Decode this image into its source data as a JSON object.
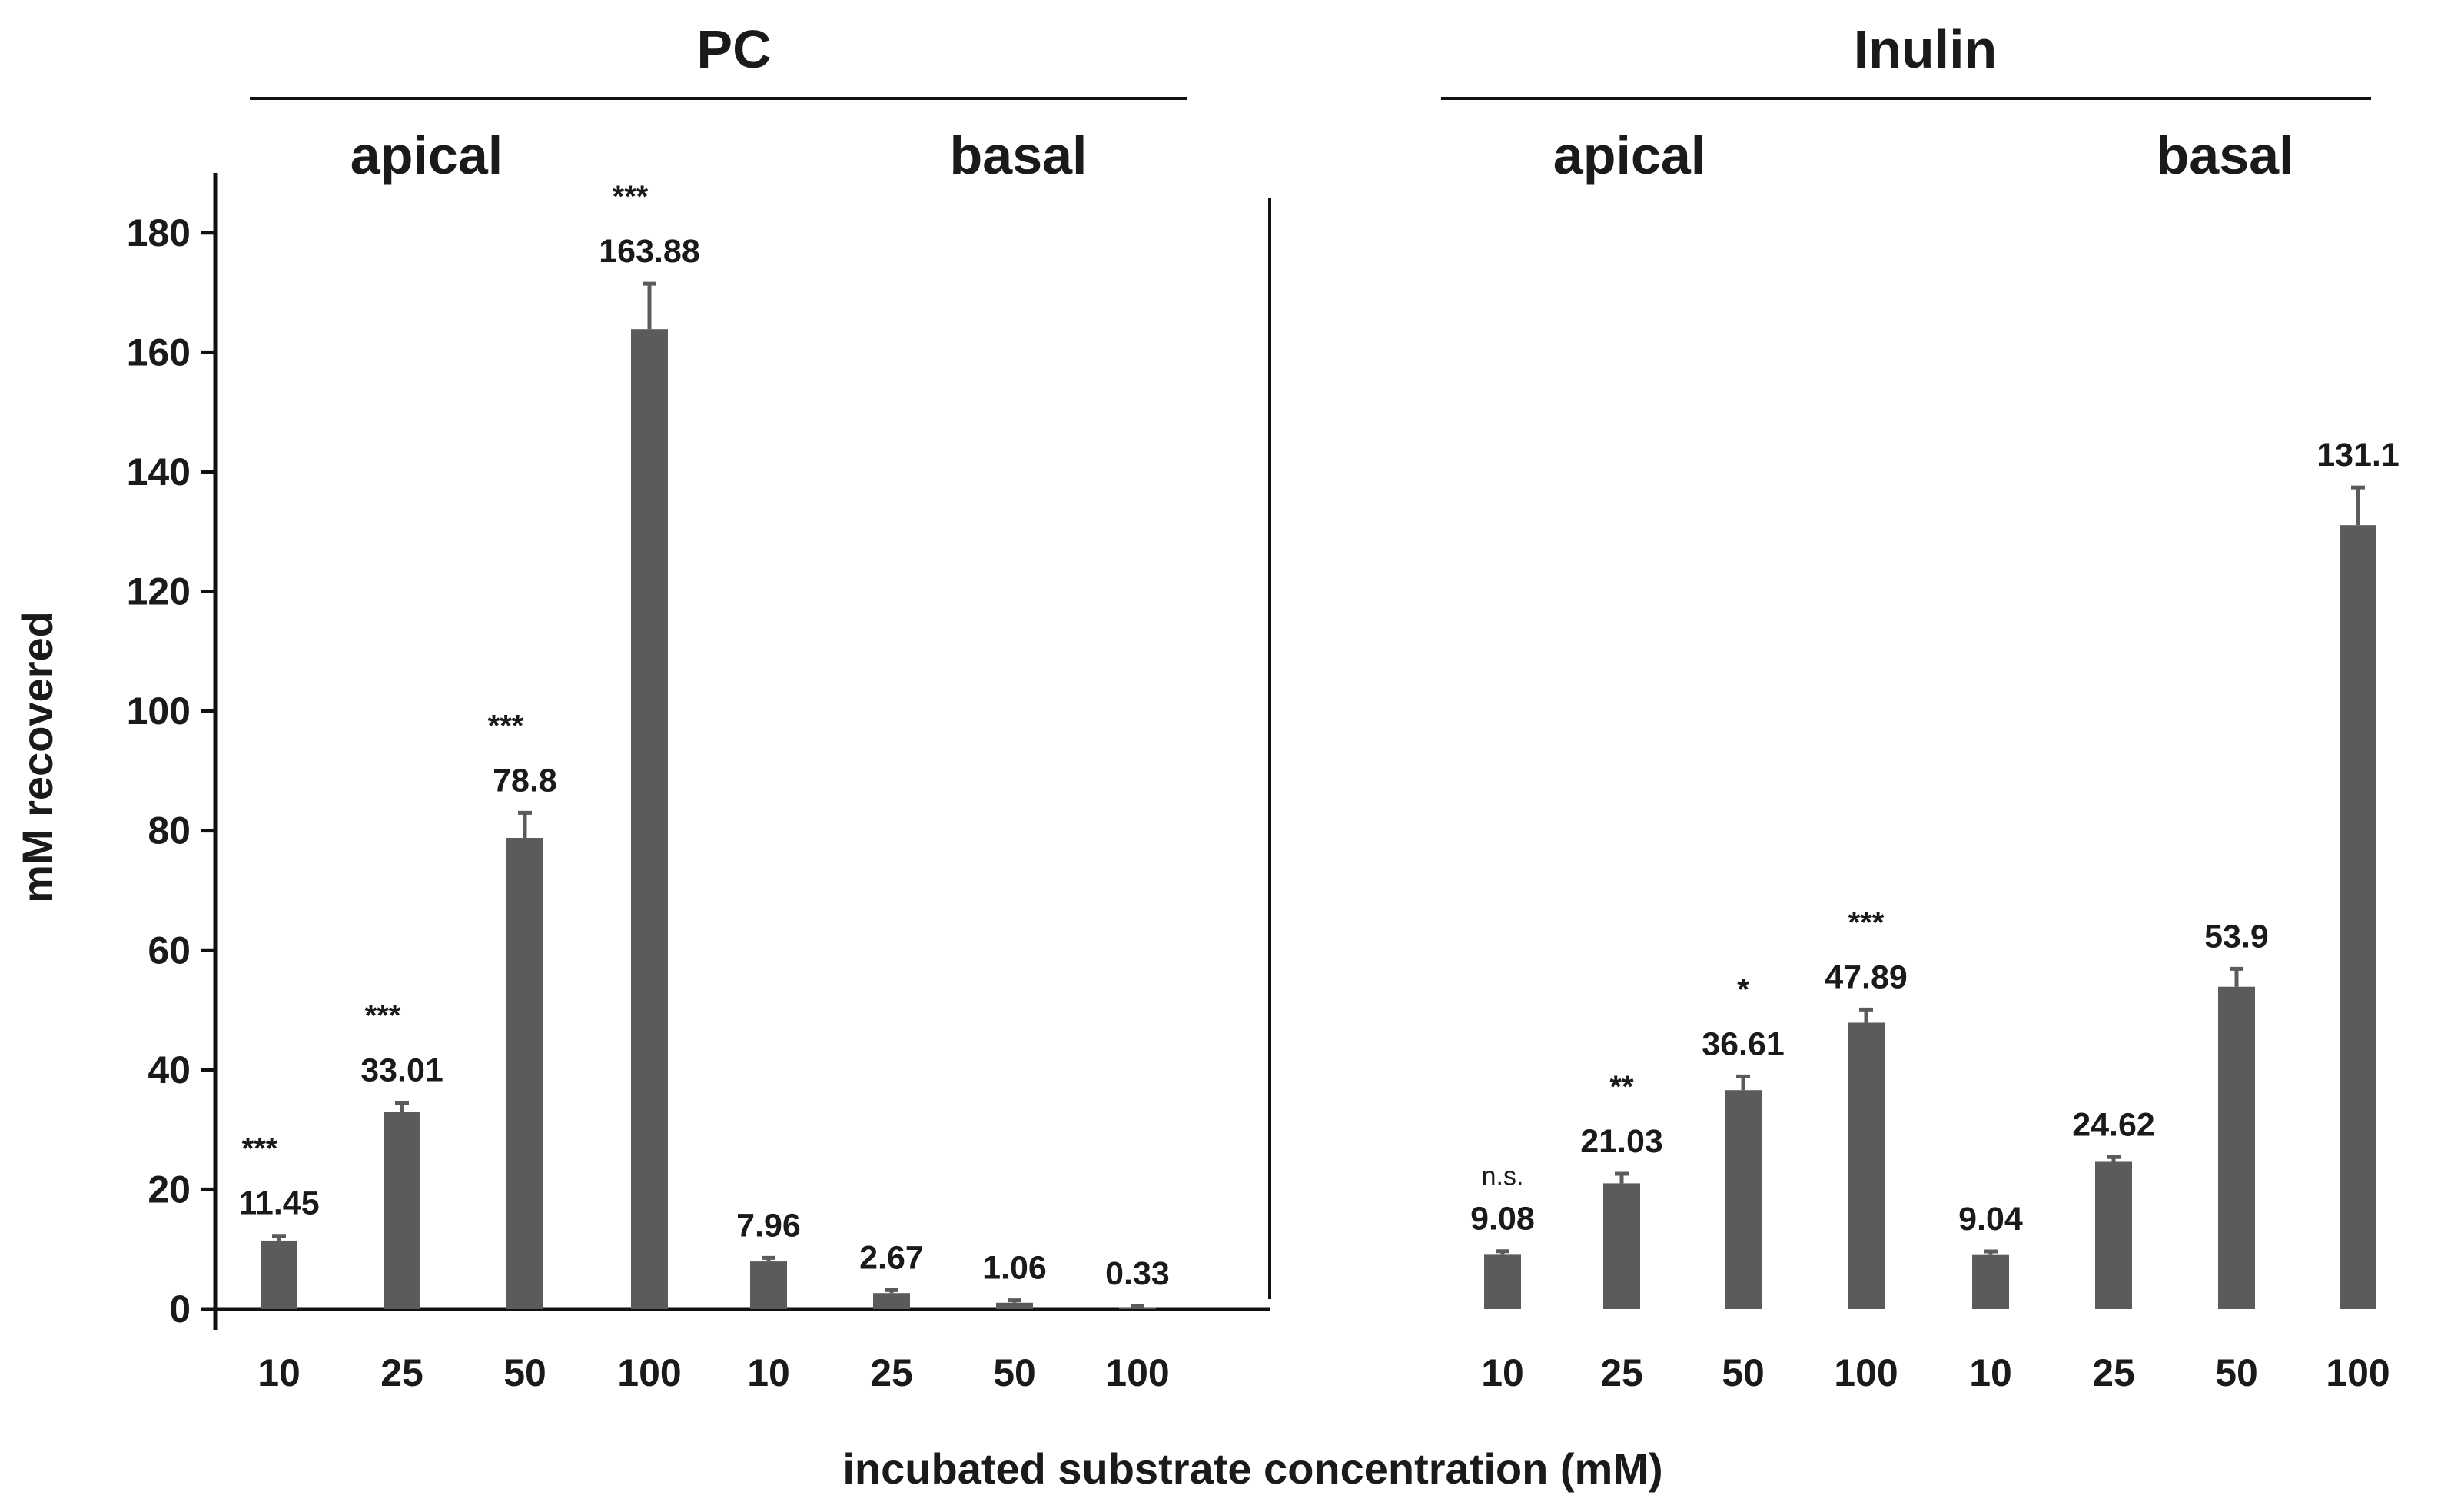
{
  "chart_data": {
    "type": "bar",
    "ylabel": "mM recovered",
    "xlabel": "incubated substrate concentration (mM)",
    "ylim": [
      0,
      190
    ],
    "yticks": [
      0,
      20,
      40,
      60,
      80,
      100,
      120,
      140,
      160,
      180
    ],
    "grid": false,
    "legend": "none",
    "bar_color": "#5b5b5b",
    "panels": [
      {
        "title": "PC",
        "groups": [
          {
            "name": "apical",
            "categories": [
              "10",
              "25",
              "50",
              "100"
            ],
            "values": [
              11.45,
              33.01,
              78.8,
              163.88
            ],
            "errors": [
              0.8,
              1.5,
              4.2,
              7.6
            ],
            "value_labels": [
              "11.45",
              "33.01",
              "78.8",
              "163.88"
            ],
            "significance": [
              "***",
              "***",
              "***",
              "***"
            ]
          },
          {
            "name": "basal",
            "categories": [
              "10",
              "25",
              "50",
              "100"
            ],
            "values": [
              7.96,
              2.67,
              1.06,
              0.33
            ],
            "errors": [
              0.6,
              0.5,
              0.4,
              0.2
            ],
            "value_labels": [
              "7.96",
              "2.67",
              "1.06",
              "0.33"
            ],
            "significance": [
              "",
              "",
              "",
              ""
            ]
          }
        ]
      },
      {
        "title": "Inulin",
        "groups": [
          {
            "name": "apical",
            "categories": [
              "10",
              "25",
              "50",
              "100"
            ],
            "values": [
              9.08,
              21.03,
              36.61,
              47.89
            ],
            "errors": [
              0.6,
              1.6,
              2.3,
              2.2
            ],
            "value_labels": [
              "9.08",
              "21.03",
              "36.61",
              "47.89"
            ],
            "significance": [
              "n.s.",
              "**",
              "*",
              "***"
            ]
          },
          {
            "name": "basal",
            "categories": [
              "10",
              "25",
              "50",
              "100"
            ],
            "values": [
              9.04,
              24.62,
              53.9,
              131.1
            ],
            "errors": [
              0.6,
              0.8,
              3.0,
              6.3
            ],
            "value_labels": [
              "9.04",
              "24.62",
              "53.9",
              "131.1"
            ],
            "significance": [
              "",
              "",
              "",
              ""
            ]
          }
        ]
      }
    ]
  }
}
